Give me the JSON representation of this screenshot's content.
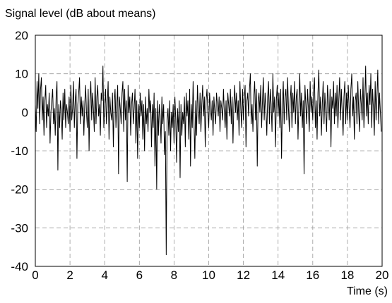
{
  "chart_data": {
    "type": "line",
    "ylabel": "Signal level (dB about means)",
    "xlabel": "Time (s)",
    "xlim": [
      0,
      20
    ],
    "ylim": [
      -40,
      20
    ],
    "x_ticks": [
      0,
      2,
      4,
      6,
      8,
      10,
      12,
      14,
      16,
      18,
      20
    ],
    "y_ticks": [
      20,
      10,
      0,
      -10,
      -20,
      -30,
      -40
    ],
    "grid": true,
    "grid_style": "dashed",
    "line_color": "#000000",
    "series": [
      {
        "sample_interval_s": 0.05,
        "values": [
          2,
          -5,
          8,
          1,
          10,
          -3,
          6,
          9,
          -2,
          4,
          -6,
          3,
          7,
          -4,
          2,
          -1,
          5,
          -8,
          0,
          3,
          6,
          -3,
          1,
          -6,
          4,
          8,
          -15,
          2,
          -4,
          3,
          0,
          -7,
          5,
          -2,
          6,
          -4,
          2,
          0,
          -3,
          4,
          -5,
          7,
          -2,
          1,
          8,
          -4,
          3,
          6,
          -12,
          2,
          5,
          9,
          -3,
          4,
          -1,
          3,
          -6,
          2,
          7,
          0,
          -4,
          6,
          -10,
          3,
          8,
          -2,
          5,
          1,
          -5,
          9,
          -3,
          4,
          7,
          -1,
          2,
          -6,
          5,
          3,
          12,
          -4,
          1,
          6,
          -3,
          2,
          8,
          -7,
          4,
          0,
          -2,
          5,
          -9,
          3,
          6,
          -4,
          2,
          7,
          -16,
          4,
          1,
          -3,
          5,
          8,
          -5,
          6,
          -2,
          3,
          -18,
          7,
          0,
          4,
          -6,
          2,
          5,
          -3,
          1,
          6,
          -8,
          3,
          -12,
          2,
          -4,
          5,
          -1,
          3,
          -7,
          2,
          -10,
          4,
          -3,
          1,
          -5,
          6,
          0,
          3,
          -9,
          2,
          -4,
          5,
          -14,
          1,
          -20,
          3,
          -6,
          2,
          -1,
          -8,
          4,
          -3,
          2,
          -11,
          -5,
          -37,
          -2,
          1,
          -6,
          3,
          -10,
          0,
          -4,
          2,
          -8,
          4,
          -2,
          -13,
          1,
          -5,
          3,
          -17,
          2,
          -6,
          0,
          -3,
          4,
          -9,
          5,
          -1,
          3,
          -7,
          6,
          -14,
          2,
          -4,
          8,
          -2,
          -12,
          3,
          -6,
          7,
          1,
          -3,
          5,
          -5,
          2,
          7,
          -1,
          4,
          -9,
          3,
          6,
          0,
          -4,
          5,
          1,
          -2,
          3,
          -6,
          4,
          0,
          -3,
          5,
          2,
          -1,
          4,
          -5,
          3,
          1,
          -2,
          6,
          0,
          -4,
          3,
          -7,
          5,
          2,
          -1,
          6,
          -3,
          4,
          -8,
          2,
          7,
          0,
          5,
          -2,
          3,
          -6,
          8,
          1,
          -4,
          6,
          -2,
          4,
          7,
          -9,
          3,
          5,
          -1,
          6,
          10,
          -3,
          2,
          -5,
          4,
          8,
          -2,
          6,
          -14,
          3,
          5,
          0,
          7,
          -4,
          3,
          9,
          -2,
          5,
          1,
          -6,
          4,
          8,
          -3,
          6,
          2,
          -5,
          10,
          0,
          4,
          -9,
          3,
          7,
          -1,
          5,
          -4,
          6,
          -12,
          2,
          8,
          -3,
          4,
          6,
          -2,
          9,
          1,
          -5,
          3,
          7,
          -4,
          5,
          0,
          8,
          -3,
          4,
          6,
          -7,
          2,
          10,
          -1,
          5,
          -4,
          3,
          -16,
          7,
          2,
          -3,
          6,
          1,
          -5,
          8,
          0,
          4,
          -2,
          6,
          9,
          -4,
          3,
          -7,
          5,
          11,
          -1,
          4,
          -6,
          2,
          8,
          -3,
          5,
          0,
          -5,
          7,
          3,
          -2,
          6,
          -9,
          4,
          1,
          8,
          -3,
          5,
          -1,
          7,
          -4,
          3,
          9,
          -2,
          6,
          0,
          -6,
          4,
          8,
          -3,
          5,
          -2,
          7,
          1,
          -4,
          6,
          10,
          -1,
          4,
          -7,
          3,
          5,
          -3,
          8,
          0,
          -5,
          6,
          2,
          -2,
          9,
          -4,
          3,
          12,
          -1,
          5,
          -3,
          7,
          2,
          10,
          -4,
          6,
          1,
          -6,
          8,
          -2,
          4,
          11,
          -3,
          5,
          0,
          -5
        ]
      }
    ]
  }
}
